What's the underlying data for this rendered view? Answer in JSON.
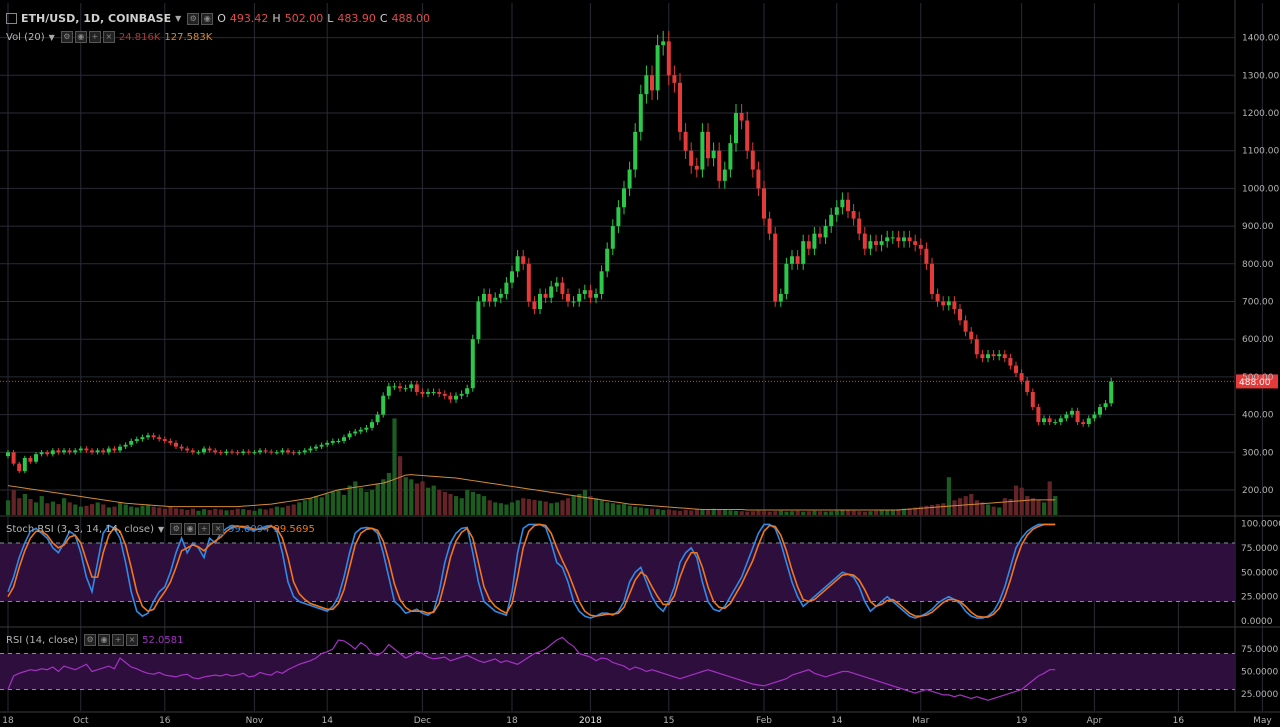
{
  "header": {
    "symbol": "ETH/USD, 1D, COINBASE",
    "ohlc": {
      "o_label": "O",
      "o": "493.42",
      "h_label": "H",
      "h": "502.00",
      "l_label": "L",
      "l": "483.90",
      "c_label": "C",
      "c": "488.00"
    },
    "volume_label": "Vol (20)",
    "volume_value": "24.816K",
    "volume_ma_value": "127.583K"
  },
  "stoch": {
    "label": "Stoch RSI (3, 3, 14, 14, close)",
    "k": "99.0094",
    "d": "99.5695"
  },
  "rsi": {
    "label": "RSI (14, close)",
    "value": "52.0581"
  },
  "colors": {
    "up": "#2cc84a",
    "down": "#e53a3a",
    "up_vol": "#1d5b21",
    "down_vol": "#642326",
    "stoch_k": "#2f8ae8",
    "stoch_d": "#f0771c",
    "rsi": "#a431c4",
    "grid": "#2a2a36",
    "osc_fill": "#2e0e3c",
    "vol_ma": "#d48a36",
    "last_price": "#e53a3a"
  },
  "chart_data": {
    "type": "candlestick",
    "last_price": 488.0,
    "price_axis": {
      "ticks": [
        200,
        300,
        400,
        500,
        600,
        700,
        800,
        900,
        1000,
        1100,
        1200,
        1300,
        1400
      ],
      "labels": [
        "200.00",
        "300.00",
        "400.00",
        "500.00",
        "600.00",
        "700.00",
        "800.00",
        "900.00",
        "1000.00",
        "1100.00",
        "1200.00",
        "1300.00",
        "1400.00"
      ],
      "last_label": "488.00"
    },
    "stoch_axis": {
      "ticks": [
        0,
        25,
        50,
        75,
        100
      ],
      "labels": [
        "0.0000",
        "25.0000",
        "50.0000",
        "75.0000",
        "100.0000"
      ],
      "bands": [
        20,
        80
      ]
    },
    "rsi_axis": {
      "ticks": [
        25,
        50,
        75
      ],
      "labels": [
        "25.0000",
        "50.0000",
        "75.0000"
      ],
      "bands": [
        30,
        70
      ]
    },
    "time_axis": [
      {
        "label": "18",
        "day": 0
      },
      {
        "label": "Oct",
        "day": 13
      },
      {
        "label": "16",
        "day": 28
      },
      {
        "label": "Nov",
        "day": 44
      },
      {
        "label": "14",
        "day": 57
      },
      {
        "label": "Dec",
        "day": 74
      },
      {
        "label": "18",
        "day": 90
      },
      {
        "label": "2018",
        "day": 104
      },
      {
        "label": "15",
        "day": 118
      },
      {
        "label": "Feb",
        "day": 135
      },
      {
        "label": "14",
        "day": 148
      },
      {
        "label": "Mar",
        "day": 163
      },
      {
        "label": "19",
        "day": 181
      },
      {
        "label": "Apr",
        "day": 194
      },
      {
        "label": "16",
        "day": 209
      },
      {
        "label": "May",
        "day": 224
      }
    ],
    "closes": [
      300,
      270,
      250,
      285,
      275,
      295,
      300,
      295,
      305,
      300,
      305,
      300,
      305,
      310,
      305,
      300,
      305,
      300,
      310,
      305,
      315,
      320,
      330,
      335,
      340,
      345,
      340,
      335,
      330,
      325,
      315,
      310,
      305,
      300,
      300,
      310,
      305,
      300,
      298,
      302,
      300,
      298,
      302,
      300,
      300,
      305,
      302,
      300,
      300,
      305,
      300,
      298,
      300,
      305,
      310,
      315,
      320,
      325,
      330,
      330,
      340,
      350,
      355,
      360,
      365,
      380,
      400,
      450,
      475,
      475,
      470,
      470,
      480,
      460,
      455,
      460,
      460,
      455,
      450,
      440,
      450,
      455,
      470,
      600,
      700,
      720,
      700,
      710,
      720,
      750,
      780,
      820,
      800,
      700,
      680,
      720,
      710,
      740,
      750,
      720,
      700,
      700,
      720,
      730,
      710,
      720,
      780,
      840,
      900,
      950,
      1000,
      1050,
      1150,
      1250,
      1300,
      1260,
      1380,
      1390,
      1300,
      1280,
      1150,
      1100,
      1060,
      1050,
      1150,
      1080,
      1100,
      1020,
      1050,
      1120,
      1200,
      1180,
      1100,
      1050,
      1000,
      920,
      880,
      700,
      720,
      800,
      820,
      800,
      860,
      840,
      880,
      870,
      900,
      930,
      950,
      970,
      940,
      920,
      880,
      840,
      860,
      850,
      860,
      870,
      870,
      860,
      870,
      860,
      850,
      840,
      800,
      720,
      700,
      690,
      700,
      680,
      650,
      620,
      600,
      560,
      550,
      560,
      555,
      560,
      550,
      530,
      510,
      490,
      460,
      420,
      380,
      390,
      380,
      380,
      390,
      400,
      410,
      380,
      375,
      390,
      400,
      420,
      430,
      488
    ],
    "stoch_k": [
      30,
      45,
      65,
      80,
      92,
      95,
      90,
      85,
      75,
      70,
      80,
      92,
      88,
      70,
      45,
      30,
      60,
      90,
      98,
      95,
      85,
      60,
      30,
      10,
      5,
      8,
      20,
      30,
      35,
      50,
      70,
      85,
      70,
      80,
      75,
      65,
      85,
      80,
      90,
      95,
      98,
      97,
      96,
      94,
      93,
      95,
      97,
      98,
      92,
      70,
      40,
      25,
      20,
      18,
      16,
      14,
      12,
      10,
      15,
      25,
      45,
      70,
      90,
      95,
      96,
      95,
      90,
      70,
      45,
      20,
      15,
      8,
      10,
      12,
      8,
      6,
      10,
      30,
      60,
      80,
      90,
      95,
      96,
      70,
      40,
      20,
      15,
      10,
      8,
      6,
      30,
      70,
      95,
      99,
      99,
      99,
      96,
      80,
      60,
      55,
      40,
      20,
      10,
      5,
      3,
      5,
      8,
      8,
      6,
      10,
      20,
      40,
      50,
      55,
      40,
      25,
      15,
      10,
      20,
      35,
      60,
      70,
      75,
      65,
      40,
      20,
      12,
      10,
      15,
      25,
      35,
      45,
      60,
      75,
      90,
      99,
      99,
      95,
      80,
      60,
      40,
      25,
      15,
      20,
      25,
      30,
      35,
      40,
      45,
      50,
      48,
      45,
      35,
      20,
      10,
      15,
      20,
      25,
      20,
      15,
      10,
      5,
      3,
      5,
      8,
      12,
      18,
      22,
      25,
      22,
      18,
      10,
      5,
      3,
      3,
      5,
      10,
      20,
      35,
      55,
      75,
      85,
      92,
      96,
      99,
      99,
      99,
      99
    ],
    "stoch_d": [
      25,
      35,
      55,
      72,
      85,
      92,
      92,
      88,
      80,
      75,
      78,
      86,
      88,
      80,
      62,
      45,
      45,
      70,
      88,
      96,
      92,
      78,
      55,
      30,
      15,
      10,
      12,
      22,
      30,
      40,
      55,
      72,
      75,
      78,
      76,
      72,
      78,
      82,
      86,
      92,
      96,
      97,
      97,
      96,
      94,
      94,
      95,
      97,
      95,
      85,
      65,
      40,
      28,
      22,
      18,
      16,
      14,
      12,
      12,
      18,
      32,
      55,
      78,
      90,
      94,
      95,
      93,
      82,
      62,
      38,
      22,
      14,
      10,
      10,
      10,
      8,
      9,
      18,
      40,
      65,
      82,
      91,
      95,
      85,
      60,
      35,
      22,
      15,
      11,
      8,
      18,
      45,
      75,
      92,
      98,
      99,
      98,
      90,
      75,
      62,
      50,
      35,
      20,
      10,
      6,
      5,
      6,
      7,
      7,
      8,
      14,
      28,
      42,
      50,
      46,
      35,
      25,
      17,
      17,
      26,
      45,
      60,
      70,
      70,
      55,
      35,
      20,
      14,
      13,
      18,
      28,
      38,
      50,
      62,
      78,
      92,
      98,
      97,
      88,
      72,
      52,
      35,
      22,
      20,
      22,
      27,
      32,
      37,
      42,
      47,
      48,
      47,
      42,
      32,
      20,
      15,
      17,
      21,
      22,
      18,
      13,
      8,
      5,
      5,
      6,
      9,
      14,
      19,
      22,
      22,
      20,
      15,
      9,
      5,
      4,
      4,
      7,
      13,
      25,
      42,
      62,
      78,
      88,
      94,
      97,
      99,
      99,
      99
    ],
    "rsi": [
      30,
      45,
      48,
      50,
      52,
      51,
      53,
      52,
      55,
      50,
      56,
      54,
      52,
      55,
      58,
      50,
      52,
      54,
      56,
      53,
      65,
      60,
      55,
      53,
      50,
      48,
      47,
      49,
      46,
      45,
      44,
      46,
      47,
      43,
      42,
      44,
      45,
      46,
      45,
      47,
      45,
      46,
      48,
      44,
      45,
      49,
      47,
      46,
      50,
      48,
      52,
      55,
      58,
      60,
      62,
      65,
      70,
      72,
      75,
      85,
      84,
      80,
      75,
      82,
      78,
      70,
      68,
      72,
      80,
      75,
      70,
      65,
      68,
      72,
      70,
      66,
      64,
      65,
      66,
      62,
      64,
      66,
      68,
      65,
      62,
      60,
      62,
      64,
      60,
      62,
      60,
      58,
      62,
      66,
      70,
      72,
      75,
      80,
      85,
      88,
      82,
      78,
      70,
      68,
      66,
      62,
      65,
      64,
      60,
      58,
      56,
      52,
      55,
      53,
      50,
      52,
      50,
      48,
      46,
      44,
      42,
      44,
      46,
      48,
      50,
      52,
      50,
      48,
      46,
      44,
      42,
      40,
      38,
      36,
      35,
      34,
      36,
      38,
      40,
      42,
      46,
      48,
      50,
      52,
      48,
      46,
      44,
      46,
      48,
      50,
      50,
      48,
      46,
      44,
      42,
      40,
      38,
      36,
      34,
      32,
      30,
      28,
      26,
      28,
      30,
      28,
      26,
      24,
      24,
      22,
      24,
      22,
      20,
      22,
      20,
      18,
      20,
      22,
      24,
      26,
      28,
      30,
      35,
      40,
      45,
      48,
      52,
      52
    ],
    "volume": [
      35,
      60,
      40,
      50,
      38,
      30,
      45,
      28,
      32,
      26,
      40,
      30,
      25,
      20,
      22,
      26,
      30,
      25,
      18,
      20,
      30,
      25,
      20,
      18,
      22,
      25,
      20,
      18,
      15,
      20,
      16,
      14,
      12,
      15,
      10,
      14,
      12,
      15,
      13,
      11,
      12,
      15,
      14,
      12,
      10,
      15,
      13,
      16,
      20,
      18,
      22,
      25,
      30,
      35,
      40,
      45,
      42,
      50,
      55,
      60,
      48,
      70,
      80,
      65,
      55,
      60,
      75,
      85,
      100,
      230,
      140,
      90,
      85,
      75,
      80,
      65,
      70,
      60,
      55,
      50,
      45,
      40,
      60,
      55,
      50,
      45,
      35,
      30,
      28,
      25,
      30,
      35,
      40,
      38,
      36,
      34,
      32,
      28,
      30,
      35,
      40,
      45,
      50,
      60,
      45,
      40,
      35,
      30,
      28,
      25,
      26,
      22,
      20,
      18,
      16,
      15,
      14,
      12,
      13,
      11,
      10,
      12,
      11,
      14,
      13,
      12,
      15,
      13,
      12,
      11,
      10,
      9,
      8,
      9,
      10,
      9,
      8,
      9,
      10,
      8,
      9,
      10,
      8,
      9,
      10,
      9,
      8,
      9,
      10,
      11,
      12,
      10,
      9,
      8,
      9,
      10,
      11,
      12,
      13,
      14,
      15,
      16,
      18,
      20,
      22,
      24,
      26,
      28,
      90,
      35,
      40,
      45,
      50,
      35,
      30,
      25,
      20,
      18,
      40,
      38,
      70,
      65,
      45,
      40,
      35,
      30,
      80,
      45
    ],
    "volume_ma": [
      70,
      68,
      66,
      64,
      62,
      60,
      58,
      56,
      54,
      52,
      50,
      48,
      46,
      44,
      42,
      40,
      38,
      36,
      34,
      32,
      30,
      28,
      27,
      26,
      25,
      24,
      23,
      22,
      21,
      20,
      20,
      20,
      20,
      20,
      20,
      20,
      20,
      20,
      20,
      20,
      20,
      20,
      21,
      22,
      23,
      24,
      25,
      26,
      28,
      30,
      32,
      34,
      36,
      38,
      40,
      44,
      48,
      52,
      56,
      60,
      62,
      64,
      66,
      68,
      70,
      72,
      74,
      76,
      80,
      85,
      90,
      95,
      96,
      95,
      94,
      93,
      92,
      91,
      90,
      89,
      88,
      86,
      84,
      82,
      80,
      78,
      76,
      74,
      72,
      70,
      68,
      66,
      64,
      62,
      60,
      58,
      56,
      54,
      52,
      50,
      48,
      46,
      44,
      42,
      40,
      38,
      36,
      34,
      32,
      30,
      28,
      26,
      25,
      24,
      23,
      22,
      21,
      20,
      19,
      18,
      17,
      16,
      15,
      14,
      13,
      13,
      13,
      13,
      13,
      13,
      13,
      13,
      12,
      12,
      12,
      12,
      12,
      12,
      12,
      12,
      12,
      12,
      12,
      12,
      12,
      12,
      12,
      12,
      12,
      12,
      12,
      12,
      12,
      12,
      12,
      12,
      12,
      12,
      12,
      12,
      13,
      14,
      15,
      16,
      17,
      18,
      19,
      20,
      21,
      22,
      23,
      24,
      25,
      26,
      27,
      28,
      29,
      30,
      31,
      32,
      33,
      34,
      35,
      36,
      36,
      36,
      36,
      36
    ]
  }
}
